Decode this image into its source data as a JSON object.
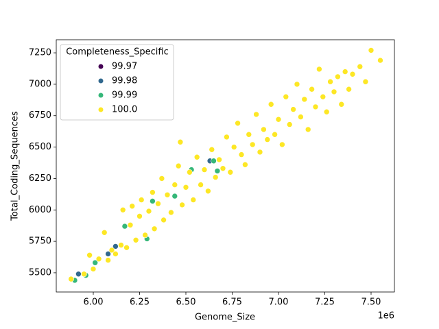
{
  "chart_data": {
    "type": "scatter",
    "x_label": "Genome_Size",
    "y_label": "Total_Coding_Sequences",
    "x_offset_label": "1e6",
    "legend_title": "Completeness_Specific",
    "legend_position": "upper left",
    "xlim": [
      5800000,
      7626000
    ],
    "ylim": [
      5347,
      7354
    ],
    "xticks": [
      {
        "value": 6000000,
        "label": "6.00"
      },
      {
        "value": 6250000,
        "label": "6.25"
      },
      {
        "value": 6500000,
        "label": "6.50"
      },
      {
        "value": 6750000,
        "label": "6.75"
      },
      {
        "value": 7000000,
        "label": "7.00"
      },
      {
        "value": 7250000,
        "label": "7.25"
      },
      {
        "value": 7500000,
        "label": "7.50"
      }
    ],
    "yticks": [
      5500,
      5750,
      6000,
      6250,
      6500,
      6750,
      7000,
      7250
    ],
    "series": [
      {
        "name": "99.97",
        "color": "#440154",
        "x": [],
        "y": []
      },
      {
        "name": "99.98",
        "color": "#31688e",
        "x": [
          5920000,
          6080000,
          6120000,
          6630000
        ],
        "y": [
          5490,
          5650,
          5710,
          6390
        ]
      },
      {
        "name": "99.99",
        "color": "#35b779",
        "x": [
          5900000,
          5960000,
          6010000,
          6170000,
          6290000,
          6320000,
          6440000,
          6530000,
          6650000,
          6670000
        ],
        "y": [
          5440,
          5480,
          5580,
          5870,
          5770,
          6070,
          6110,
          6320,
          6390,
          6310
        ]
      },
      {
        "name": "100.0",
        "color": "#fde725",
        "x": [
          5880000,
          5950000,
          5980000,
          6000000,
          6030000,
          6060000,
          6080000,
          6100000,
          6120000,
          6150000,
          6160000,
          6180000,
          6200000,
          6210000,
          6230000,
          6250000,
          6260000,
          6280000,
          6300000,
          6320000,
          6330000,
          6350000,
          6370000,
          6380000,
          6400000,
          6420000,
          6440000,
          6460000,
          6470000,
          6480000,
          6500000,
          6520000,
          6540000,
          6560000,
          6580000,
          6600000,
          6620000,
          6640000,
          6660000,
          6680000,
          6700000,
          6720000,
          6740000,
          6760000,
          6780000,
          6800000,
          6820000,
          6840000,
          6860000,
          6880000,
          6900000,
          6920000,
          6940000,
          6960000,
          6980000,
          7000000,
          7020000,
          7040000,
          7060000,
          7080000,
          7100000,
          7120000,
          7140000,
          7160000,
          7180000,
          7200000,
          7220000,
          7240000,
          7260000,
          7280000,
          7300000,
          7320000,
          7340000,
          7360000,
          7380000,
          7400000,
          7440000,
          7470000,
          7500000,
          7550000
        ],
        "y": [
          5450,
          5490,
          5640,
          5530,
          5610,
          5820,
          5600,
          5680,
          5650,
          5720,
          6000,
          5700,
          5880,
          6030,
          5760,
          5950,
          6080,
          5800,
          5990,
          6140,
          5850,
          6050,
          6250,
          5920,
          6120,
          5980,
          6200,
          6350,
          6540,
          6040,
          6180,
          6300,
          6080,
          6420,
          6200,
          6320,
          6150,
          6480,
          6260,
          6400,
          6330,
          6580,
          6300,
          6500,
          6690,
          6440,
          6360,
          6600,
          6520,
          6760,
          6460,
          6640,
          6560,
          6840,
          6600,
          6720,
          6520,
          6900,
          6680,
          6800,
          7000,
          6740,
          6880,
          6640,
          6960,
          6820,
          7120,
          6900,
          6780,
          7020,
          6940,
          7060,
          6840,
          7100,
          6960,
          7080,
          7140,
          7020,
          7270,
          7190
        ]
      }
    ]
  }
}
